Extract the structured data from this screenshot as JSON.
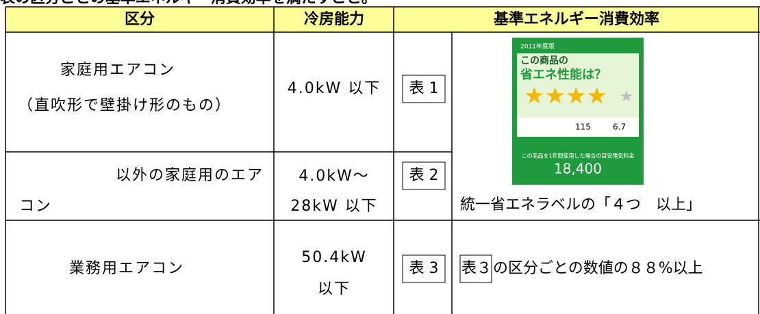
{
  "heading": "表の区分ごとの基準エネルギー消費効率を満たすこと。",
  "table": {
    "header": [
      "区分",
      "冷房能力",
      "基準エネルギー消費効率"
    ],
    "rows": [
      {
        "category": [
          "家庭用エアコン",
          "（直吹形で壁掛け形のもの）"
        ],
        "capacity": [
          "4.0kW 以下"
        ],
        "ref": "表 1"
      },
      {
        "category": [
          "以外の家庭用のエア",
          "コン"
        ],
        "capacity": [
          "4.0kW～",
          "28kW 以下"
        ],
        "ref": "表 2",
        "standard": "統一省エネラベルの「４つ　以上」"
      },
      {
        "category": [
          "業務用エアコン"
        ],
        "capacity": [
          "50.4kW",
          "以下"
        ],
        "ref": "表 3",
        "standard_ref": "表３",
        "standard": "の区分ごとの数値の８８%以上"
      }
    ]
  },
  "label": {
    "year": "2011年度版",
    "line1": "この商品の",
    "line2": "省エネ性能は？",
    "rate": "115",
    "apf": "6.7",
    "cost_caption": "この商品を1年間使用した場合の目安電気料金",
    "cost": "18,400"
  }
}
